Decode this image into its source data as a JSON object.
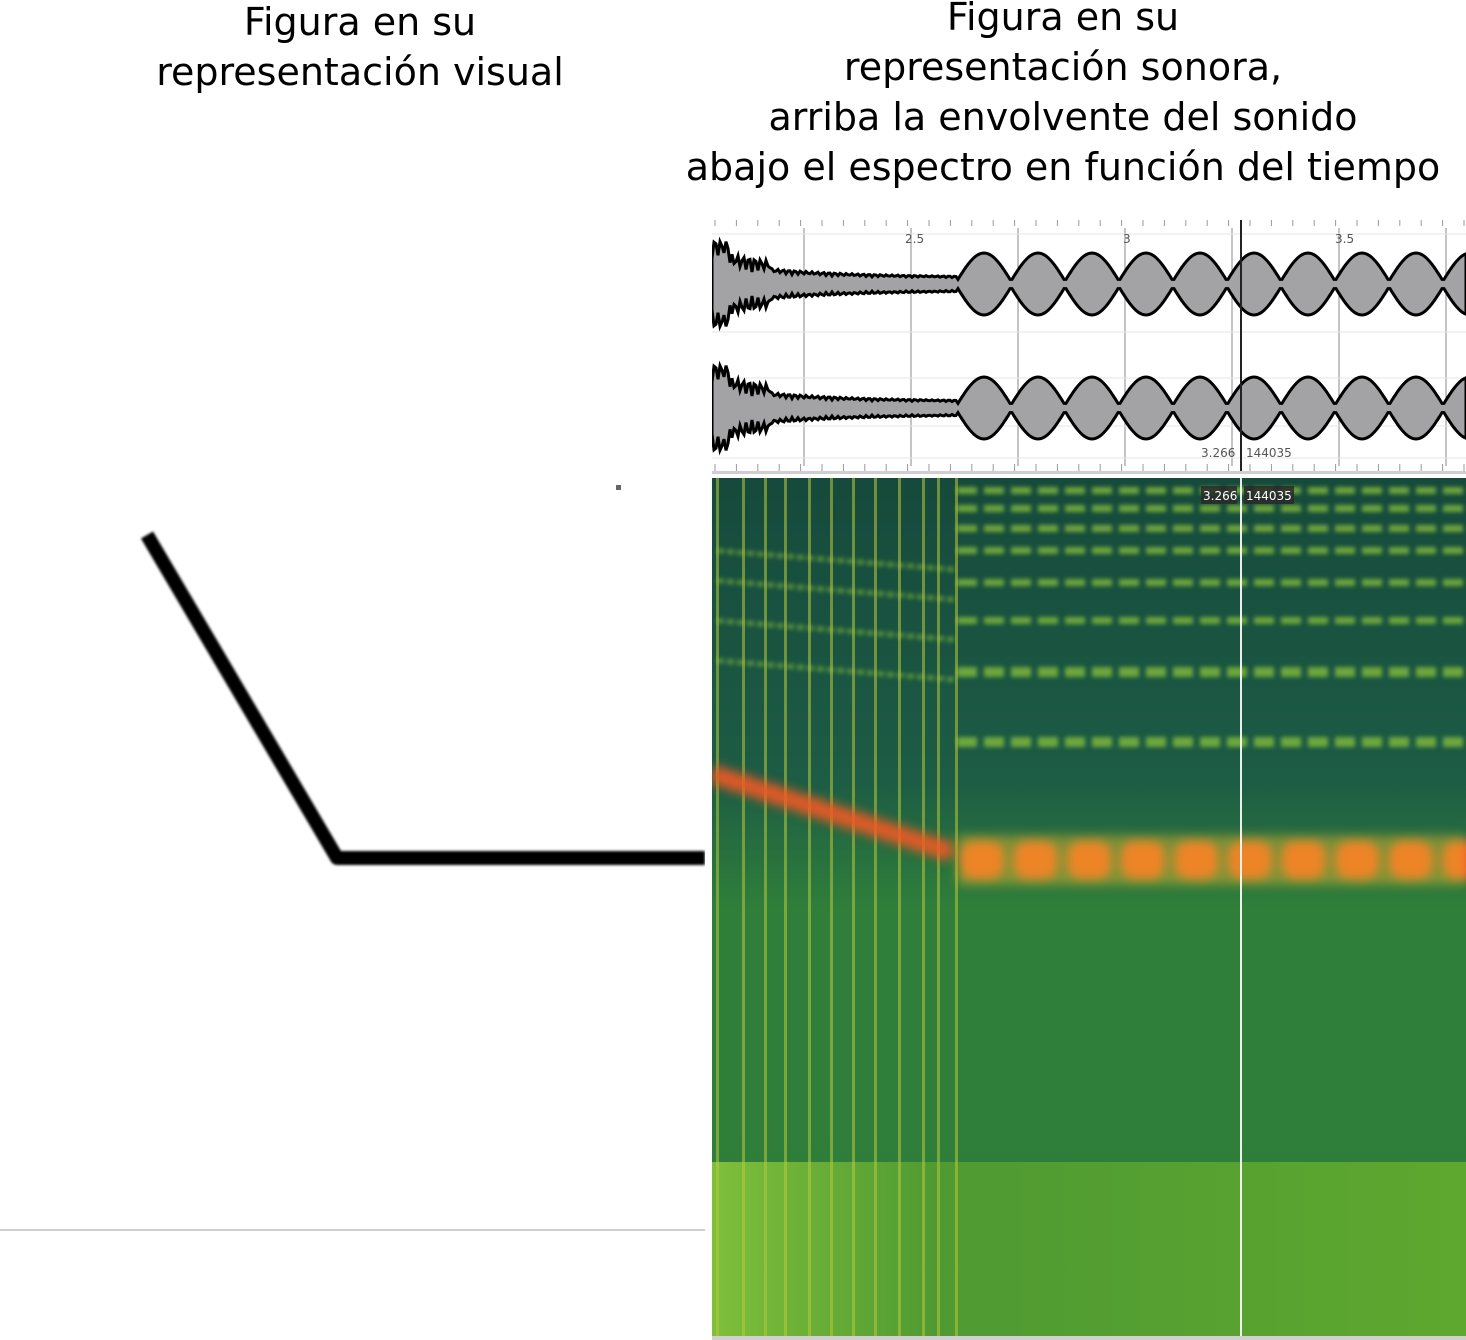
{
  "captions": {
    "left": [
      "Figura en su",
      "representación visual"
    ],
    "right": [
      "Figura en su",
      "representación sonora,",
      "arriba la envolvente del sonido",
      "abajo el espectro en función del tiempo"
    ]
  },
  "waveform": {
    "ruler_ticks": [
      "2.5",
      "3",
      "3.5"
    ],
    "cursor_time": "3.266",
    "cursor_sample": "144035",
    "fill_color": "#a3a3a5",
    "outline_color": "#000000"
  },
  "spectrogram": {
    "cursor_time": "3.266",
    "cursor_sample": "144035",
    "colors": {
      "background": "#1f6b4a",
      "harmonic": "#8ac23a",
      "fundamental": "#f05a22",
      "low_band": "#5fa030"
    }
  },
  "visual_figure": {
    "stroke_color": "#000000"
  }
}
